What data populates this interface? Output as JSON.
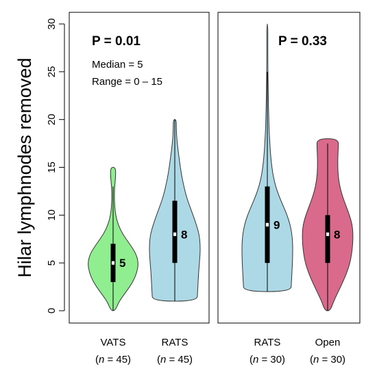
{
  "chart_data": {
    "type": "violin",
    "ylabel": "Hilar lymphnodes removed",
    "ylim": [
      0,
      30
    ],
    "yticks": [
      0,
      5,
      10,
      15,
      20,
      25,
      30
    ],
    "grid": false,
    "panels": [
      {
        "stats": [
          "P = 0.01",
          "Median = 5",
          "Range = 0 – 15"
        ],
        "groups": [
          {
            "name": "VATS",
            "n_label": "(n = 45)",
            "n_prefix": "(",
            "n_var": "n",
            "n_suffix": " = 45)",
            "color": "#90EE90",
            "min": 0,
            "q1": 3,
            "median": 5,
            "q3": 7,
            "max": 15,
            "whisker_max": 13,
            "median_label": "5",
            "density": [
              [
                0,
                0.08
              ],
              [
                1,
                0.24
              ],
              [
                2,
                0.52
              ],
              [
                3,
                0.78
              ],
              [
                4,
                0.94
              ],
              [
                5,
                1.0
              ],
              [
                6,
                0.9
              ],
              [
                7,
                0.65
              ],
              [
                8,
                0.38
              ],
              [
                9,
                0.2
              ],
              [
                10,
                0.1
              ],
              [
                11,
                0.06
              ],
              [
                12,
                0.05
              ],
              [
                13,
                0.06
              ],
              [
                14,
                0.1
              ],
              [
                15,
                0.1
              ]
            ]
          },
          {
            "name": "RATS",
            "n_label": "(n = 45)",
            "n_prefix": "(",
            "n_var": "n",
            "n_suffix": " = 45)",
            "color": "#ADD8E6",
            "min": 1,
            "q1": 5,
            "median": 8,
            "q3": 11.5,
            "max": 20,
            "whisker_max": 20,
            "median_label": "8",
            "density": [
              [
                1,
                0.88
              ],
              [
                2,
                0.9
              ],
              [
                3,
                0.92
              ],
              [
                4,
                0.94
              ],
              [
                5,
                0.97
              ],
              [
                6,
                1.0
              ],
              [
                7,
                1.0
              ],
              [
                8,
                0.96
              ],
              [
                9,
                0.85
              ],
              [
                10,
                0.72
              ],
              [
                11,
                0.58
              ],
              [
                12,
                0.45
              ],
              [
                13,
                0.36
              ],
              [
                14,
                0.28
              ],
              [
                15,
                0.22
              ],
              [
                16,
                0.17
              ],
              [
                17,
                0.12
              ],
              [
                18,
                0.08
              ],
              [
                19,
                0.06
              ],
              [
                20,
                0.06
              ]
            ]
          }
        ]
      },
      {
        "stats": [
          "P = 0.33"
        ],
        "groups": [
          {
            "name": "RATS",
            "n_label": "(n = 30)",
            "n_prefix": "(",
            "n_var": "n",
            "n_suffix": " = 30)",
            "color": "#ADD8E6",
            "min": 2,
            "q1": 5,
            "median": 9,
            "q3": 13,
            "max": 30,
            "whisker_max": 25,
            "median_label": "9",
            "density": [
              [
                2,
                0.93
              ],
              [
                3,
                0.95
              ],
              [
                4,
                0.97
              ],
              [
                5,
                0.99
              ],
              [
                6,
                1.0
              ],
              [
                7,
                1.0
              ],
              [
                8,
                0.97
              ],
              [
                9,
                0.9
              ],
              [
                10,
                0.78
              ],
              [
                11,
                0.62
              ],
              [
                12,
                0.46
              ],
              [
                13,
                0.33
              ],
              [
                14,
                0.24
              ],
              [
                15,
                0.18
              ],
              [
                16,
                0.14
              ],
              [
                17,
                0.11
              ],
              [
                18,
                0.09
              ],
              [
                19,
                0.07
              ],
              [
                20,
                0.06
              ],
              [
                22,
                0.04
              ],
              [
                24,
                0.03
              ],
              [
                26,
                0.02
              ],
              [
                28,
                0.02
              ],
              [
                30,
                0.02
              ]
            ]
          },
          {
            "name": "Open",
            "n_label": "(n = 30)",
            "n_prefix": "(",
            "n_var": "n",
            "n_suffix": " = 30)",
            "color": "#D96A8C",
            "min": 0,
            "q1": 5,
            "median": 8,
            "q3": 10,
            "max": 18,
            "whisker_max": 17.5,
            "median_label": "8",
            "density": [
              [
                0,
                0.1
              ],
              [
                1,
                0.24
              ],
              [
                2,
                0.42
              ],
              [
                3,
                0.6
              ],
              [
                4,
                0.76
              ],
              [
                5,
                0.88
              ],
              [
                6,
                0.95
              ],
              [
                7,
                0.99
              ],
              [
                8,
                1.0
              ],
              [
                9,
                0.97
              ],
              [
                10,
                0.86
              ],
              [
                11,
                0.72
              ],
              [
                12,
                0.58
              ],
              [
                13,
                0.48
              ],
              [
                14,
                0.42
              ],
              [
                15,
                0.4
              ],
              [
                16,
                0.4
              ],
              [
                17,
                0.42
              ],
              [
                18,
                0.42
              ]
            ]
          }
        ]
      }
    ]
  }
}
